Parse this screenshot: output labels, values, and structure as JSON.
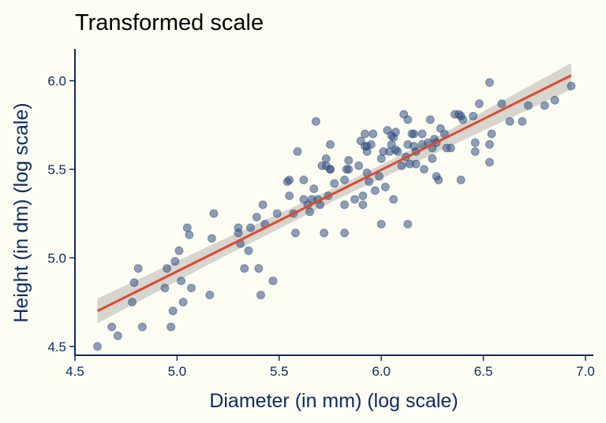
{
  "chart_data": {
    "type": "scatter",
    "title": "Transformed scale",
    "xlabel": "Diameter (in mm)  (log scale)",
    "ylabel": "Height (in dm) (log scale)",
    "xlim": [
      4.5,
      7.0
    ],
    "ylim": [
      4.45,
      6.18
    ],
    "x_ticks": [
      "4.5",
      "5.0",
      "5.5",
      "6.0",
      "6.5",
      "7.0"
    ],
    "y_ticks": [
      "4.5",
      "5.0",
      "5.5",
      "6.0"
    ],
    "grid": false,
    "colors": {
      "background": "#fdfdf3",
      "points": "#2f4f7f",
      "trend_line": "#e0472f",
      "confidence_band": "#c8c8c2",
      "axis": "#0d2c63"
    },
    "trend_line": {
      "x": [
        4.61,
        6.93
      ],
      "y": [
        4.7,
        6.03
      ]
    },
    "confidence_band": {
      "x": [
        4.61,
        5.2,
        5.8,
        6.3,
        6.93
      ],
      "lower": [
        4.63,
        4.99,
        5.34,
        5.61,
        5.95
      ],
      "upper": [
        4.77,
        5.09,
        5.41,
        5.7,
        6.1
      ]
    },
    "points": [
      [
        4.61,
        4.5
      ],
      [
        4.68,
        4.61
      ],
      [
        4.71,
        4.56
      ],
      [
        4.78,
        4.75
      ],
      [
        4.79,
        4.86
      ],
      [
        4.81,
        4.94
      ],
      [
        4.83,
        4.61
      ],
      [
        4.94,
        4.83
      ],
      [
        4.95,
        4.94
      ],
      [
        4.97,
        4.61
      ],
      [
        4.98,
        4.7
      ],
      [
        4.99,
        4.98
      ],
      [
        5.01,
        5.04
      ],
      [
        5.02,
        4.87
      ],
      [
        5.03,
        4.75
      ],
      [
        5.05,
        5.17
      ],
      [
        5.06,
        5.13
      ],
      [
        5.07,
        4.83
      ],
      [
        5.16,
        4.79
      ],
      [
        5.17,
        5.11
      ],
      [
        5.18,
        5.25
      ],
      [
        5.3,
        5.17
      ],
      [
        5.3,
        5.14
      ],
      [
        5.31,
        5.08
      ],
      [
        5.33,
        4.94
      ],
      [
        5.35,
        5.04
      ],
      [
        5.36,
        5.17
      ],
      [
        5.39,
        5.23
      ],
      [
        5.4,
        4.94
      ],
      [
        5.41,
        4.79
      ],
      [
        5.42,
        5.3
      ],
      [
        5.43,
        5.19
      ],
      [
        5.47,
        4.87
      ],
      [
        5.49,
        5.25
      ],
      [
        5.54,
        5.43
      ],
      [
        5.55,
        5.44
      ],
      [
        5.55,
        5.35
      ],
      [
        5.57,
        5.25
      ],
      [
        5.58,
        5.14
      ],
      [
        5.59,
        5.6
      ],
      [
        5.62,
        5.44
      ],
      [
        5.62,
        5.33
      ],
      [
        5.64,
        5.3
      ],
      [
        5.65,
        5.26
      ],
      [
        5.66,
        5.33
      ],
      [
        5.67,
        5.39
      ],
      [
        5.68,
        5.77
      ],
      [
        5.69,
        5.33
      ],
      [
        5.7,
        5.3
      ],
      [
        5.71,
        5.52
      ],
      [
        5.72,
        5.14
      ],
      [
        5.73,
        5.52
      ],
      [
        5.73,
        5.56
      ],
      [
        5.74,
        5.35
      ],
      [
        5.75,
        5.64
      ],
      [
        5.75,
        5.5
      ],
      [
        5.75,
        5.5
      ],
      [
        5.77,
        5.42
      ],
      [
        5.82,
        5.3
      ],
      [
        5.82,
        5.14
      ],
      [
        5.82,
        5.44
      ],
      [
        5.83,
        5.5
      ],
      [
        5.84,
        5.55
      ],
      [
        5.84,
        5.5
      ],
      [
        5.87,
        5.33
      ],
      [
        5.89,
        5.52
      ],
      [
        5.9,
        5.66
      ],
      [
        5.91,
        5.3
      ],
      [
        5.91,
        5.35
      ],
      [
        5.92,
        5.7
      ],
      [
        5.92,
        5.63
      ],
      [
        5.93,
        5.63
      ],
      [
        5.93,
        5.6
      ],
      [
        5.93,
        5.48
      ],
      [
        5.94,
        5.43
      ],
      [
        5.95,
        5.64
      ],
      [
        5.96,
        5.7
      ],
      [
        5.97,
        5.38
      ],
      [
        5.99,
        5.46
      ],
      [
        6.0,
        5.56
      ],
      [
        6.0,
        5.19
      ],
      [
        6.01,
        5.6
      ],
      [
        6.02,
        5.4
      ],
      [
        6.03,
        5.72
      ],
      [
        6.04,
        5.6
      ],
      [
        6.05,
        5.64
      ],
      [
        6.05,
        5.69
      ],
      [
        6.06,
        5.68
      ],
      [
        6.06,
        5.33
      ],
      [
        6.07,
        5.71
      ],
      [
        6.07,
        5.61
      ],
      [
        6.08,
        5.6
      ],
      [
        6.1,
        5.52
      ],
      [
        6.11,
        5.81
      ],
      [
        6.12,
        5.57
      ],
      [
        6.13,
        5.19
      ],
      [
        6.13,
        5.64
      ],
      [
        6.13,
        5.78
      ],
      [
        6.14,
        5.53
      ],
      [
        6.15,
        5.7
      ],
      [
        6.16,
        5.7
      ],
      [
        6.16,
        5.63
      ],
      [
        6.17,
        5.6
      ],
      [
        6.17,
        5.53
      ],
      [
        6.2,
        5.7
      ],
      [
        6.2,
        5.64
      ],
      [
        6.21,
        5.5
      ],
      [
        6.23,
        5.65
      ],
      [
        6.24,
        5.78
      ],
      [
        6.25,
        5.56
      ],
      [
        6.25,
        5.62
      ],
      [
        6.26,
        5.67
      ],
      [
        6.27,
        5.65
      ],
      [
        6.27,
        5.46
      ],
      [
        6.28,
        5.44
      ],
      [
        6.29,
        5.73
      ],
      [
        6.31,
        5.7
      ],
      [
        6.32,
        5.62
      ],
      [
        6.34,
        5.62
      ],
      [
        6.36,
        5.81
      ],
      [
        6.38,
        5.81
      ],
      [
        6.39,
        5.44
      ],
      [
        6.39,
        5.8
      ],
      [
        6.4,
        5.78
      ],
      [
        6.45,
        5.8
      ],
      [
        6.46,
        5.6
      ],
      [
        6.46,
        5.65
      ],
      [
        6.48,
        5.87
      ],
      [
        6.53,
        5.54
      ],
      [
        6.53,
        5.64
      ],
      [
        6.53,
        5.99
      ],
      [
        6.54,
        5.7
      ],
      [
        6.59,
        5.87
      ],
      [
        6.63,
        5.77
      ],
      [
        6.69,
        5.77
      ],
      [
        6.72,
        5.86
      ],
      [
        6.8,
        5.86
      ],
      [
        6.85,
        5.89
      ],
      [
        6.93,
        5.97
      ]
    ]
  }
}
